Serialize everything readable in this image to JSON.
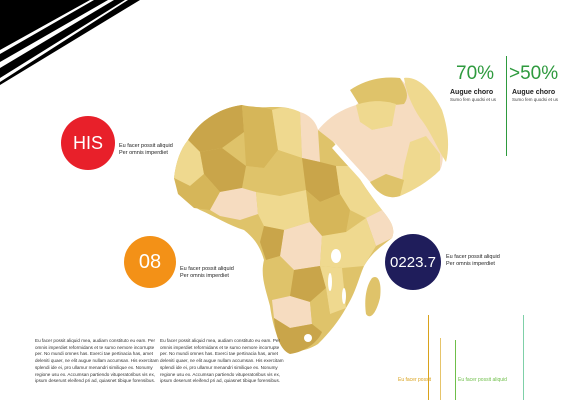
{
  "colors": {
    "green": "#2e9a3e",
    "red": "#e8202a",
    "orange": "#f39117",
    "navy": "#1f1d5b",
    "map_dark": "#c9a54a",
    "map_mid": "#dfc36a",
    "map_light": "#efd98f",
    "map_pale": "#f6dcc0"
  },
  "stats": [
    {
      "value": "70%",
      "label": "Augue choro",
      "sub": "Sumo fem quodsi et us"
    },
    {
      "value": ">50%",
      "label": "Augue choro",
      "sub": "Sumo fem quodsi et us"
    }
  ],
  "callouts": [
    {
      "badge": "HIS",
      "color": "red",
      "line1": "Eu facer possit aliquid",
      "line2": "Per omnis imperdiet"
    },
    {
      "badge": "08",
      "color": "orange",
      "line1": "Eu facer possit aliquid",
      "line2": "Per omnis imperdiet"
    },
    {
      "badge": "0223.7",
      "color": "navy",
      "line1": "Eu facer possit aliquid",
      "line2": "Per omnis imperdiet"
    }
  ],
  "paragraphs": [
    "Eu facer possit aliquid mea, audiam constituto eu eam. Per omnis imperdiet reformidans et te sumo nemore incorrupte per. No mundi omnes has. Exerci tae pertinacia has, amet deleniti quaer, ne elit augue nullam accumsan. His exercitam splendi ide ei, pro ullamur menandri similique ex. Nonumy regione usu ex. Accumsan partiendo vituperatoribus vis ex, ipsum deserunt eleifend pri ad, quiasnet tibique forensibus.",
    "Eu facer possit aliquid mea, audiam constituto eu eam. Per omnis imperdiet reformidans et te sumo nemore incorrupte per. No mundi omnes has. Exerci tae pertinacia has, amet deleniti quaer, ne elit augue nullam accumsan. His exercitam splendi ide ei, pro ullamur menandri similique ex. Nonumy regione usu ex. Accumsan partiendo vituperatoribus vis ex, ipsum deserunt eleifend pri ad, quiasnet tibique forensibus."
  ],
  "bottom_labels": [
    {
      "text": "Eu facer possit",
      "color": "#d9a21c"
    },
    {
      "text": "Eu facer possit aliquid",
      "color": "#6fbf4a"
    }
  ]
}
